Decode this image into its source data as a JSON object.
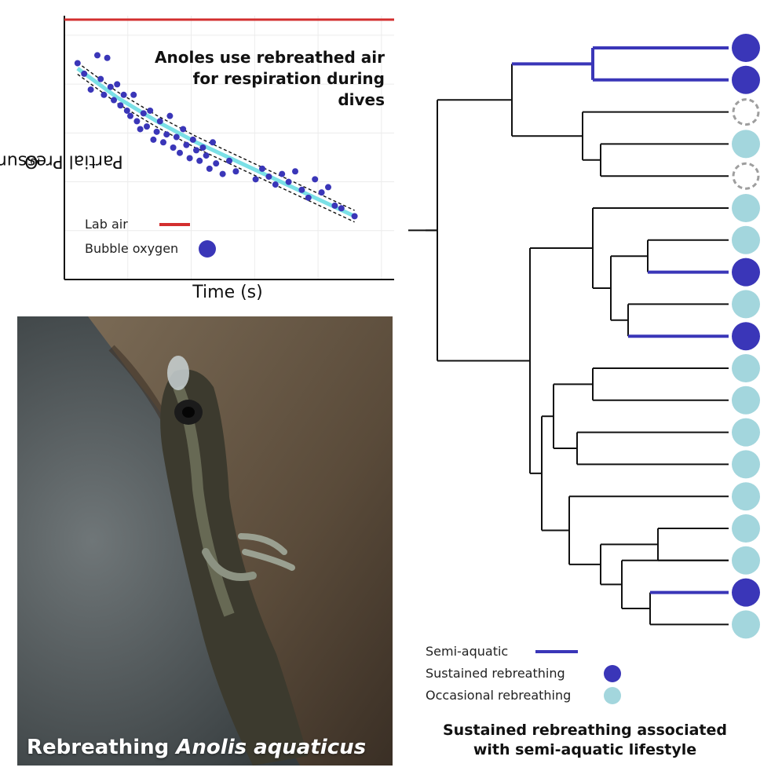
{
  "chart_data": {
    "type": "scatter",
    "title": "Anoles use rebreathed air for respiration during dives",
    "xlabel": "Time (s)",
    "ylabel_main": "O",
    "ylabel_sub": "2",
    "ylabel_rest": " Partial Pressure (hPa)",
    "xlim": [
      0,
      100
    ],
    "ylim": [
      0,
      100
    ],
    "grid": true,
    "legend_placement": "bottom-left",
    "series": [
      {
        "name": "Lab air",
        "type": "line",
        "color": "#d32f2f",
        "x": [
          0,
          100
        ],
        "y": [
          98.5,
          98.5
        ]
      },
      {
        "name": "Bubble oxygen",
        "type": "scatter",
        "color": "#3a36b8",
        "x": [
          4,
          6,
          8,
          10,
          11,
          12,
          13,
          14,
          15,
          16,
          17,
          18,
          19,
          20,
          21,
          22,
          23,
          24,
          25,
          26,
          27,
          28,
          29,
          30,
          31,
          32,
          33,
          34,
          35,
          36,
          37,
          38,
          39,
          40,
          41,
          42,
          43,
          44,
          45,
          46,
          48,
          50,
          52,
          58,
          60,
          62,
          64,
          66,
          68,
          70,
          72,
          74,
          76,
          78,
          80,
          82,
          84,
          88
        ],
        "y": [
          82,
          78,
          72,
          85,
          76,
          70,
          84,
          73,
          68,
          74,
          66,
          70,
          64,
          62,
          70,
          60,
          57,
          63,
          58,
          64,
          53,
          56,
          60,
          52,
          55,
          62,
          50,
          54,
          48,
          57,
          51,
          46,
          53,
          49,
          45,
          50,
          47,
          42,
          52,
          44,
          40,
          45,
          41,
          38,
          42,
          39,
          36,
          40,
          37,
          41,
          34,
          31,
          38,
          33,
          35,
          28,
          27,
          24
        ]
      },
      {
        "name": "",
        "type": "fit",
        "color": "#7be0e6",
        "x": [
          4,
          16,
          28,
          40,
          52,
          64,
          76,
          88
        ],
        "y": [
          80,
          69,
          60,
          52,
          45,
          38,
          31,
          24
        ]
      }
    ],
    "annotations": []
  },
  "legend": {
    "lab_air": "Lab air",
    "bubble_oxygen": "Bubble oxygen"
  },
  "photo": {
    "caption_prefix": "Rebreathing ",
    "caption_species": "Anolis aquaticus"
  },
  "tree": {
    "tips": [
      "sustained",
      "sustained",
      "unknown",
      "occasional",
      "unknown",
      "occasional",
      "occasional",
      "sustained",
      "occasional",
      "sustained",
      "occasional",
      "occasional",
      "occasional",
      "occasional",
      "occasional",
      "occasional",
      "occasional",
      "sustained",
      "occasional"
    ],
    "colors": {
      "semi_aquatic": "#3a36b8",
      "sustained": "#3a36b8",
      "occasional": "#a3d6dd",
      "unknown": "#9e9e9e",
      "branch": "#111111"
    },
    "legend": {
      "semi_aquatic": "Semi-aquatic",
      "sustained": "Sustained rebreathing",
      "occasional": "Occasional rebreathing"
    },
    "title_line1": "Sustained rebreathing associated",
    "title_line2": "with semi-aquatic lifestyle"
  }
}
